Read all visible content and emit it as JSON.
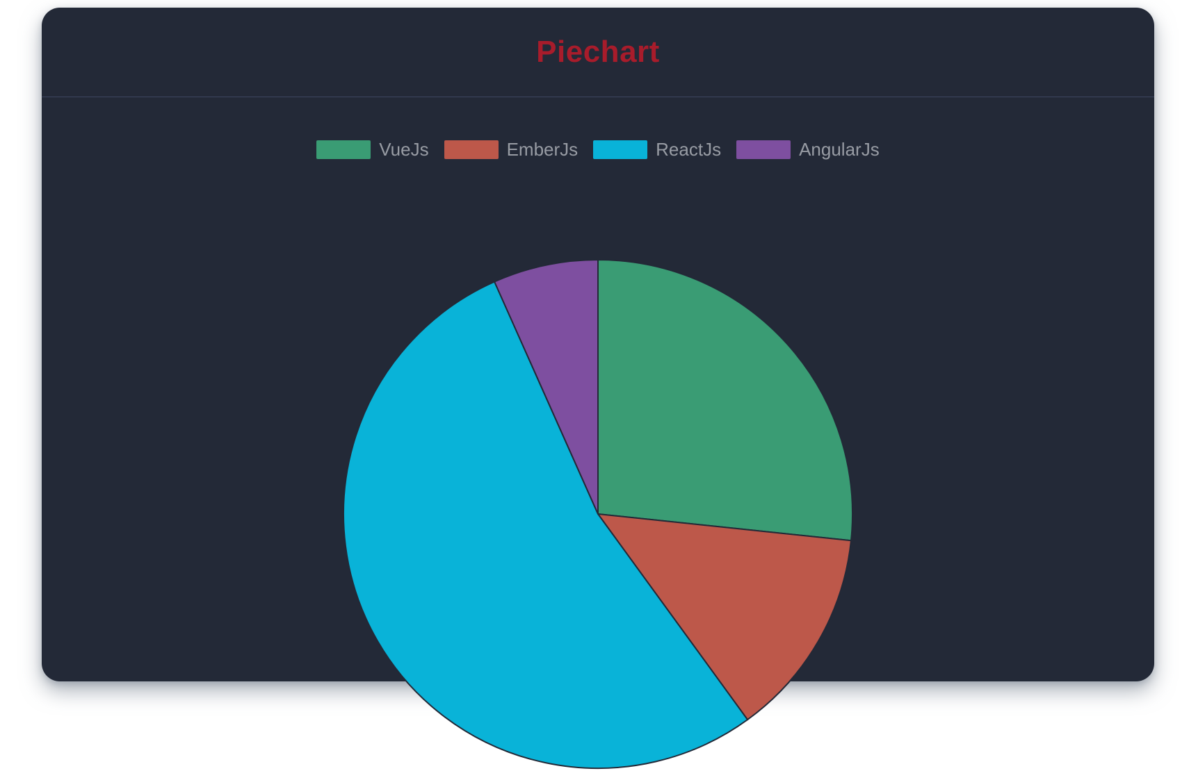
{
  "page": {
    "background": "#ffffff"
  },
  "card": {
    "background": "#232937",
    "divider_color": "#3d4660",
    "title": "Piechart",
    "title_color": "#a81c2b"
  },
  "legend": {
    "position": "top",
    "text_color": "#989ca4"
  },
  "chart_data": {
    "type": "pie",
    "title": "Piechart",
    "legend_position": "top",
    "start_angle_deg": 0,
    "series": [
      {
        "name": "VueJs",
        "value": 40,
        "percent_of_total": 26.7,
        "color": "#3a9c74"
      },
      {
        "name": "EmberJs",
        "value": 20,
        "percent_of_total": 13.3,
        "color": "#bd584a"
      },
      {
        "name": "ReactJs",
        "value": 80,
        "percent_of_total": 53.3,
        "color": "#09b3d8"
      },
      {
        "name": "AngularJs",
        "value": 10,
        "percent_of_total": 6.7,
        "color": "#7e4fa0"
      }
    ]
  }
}
